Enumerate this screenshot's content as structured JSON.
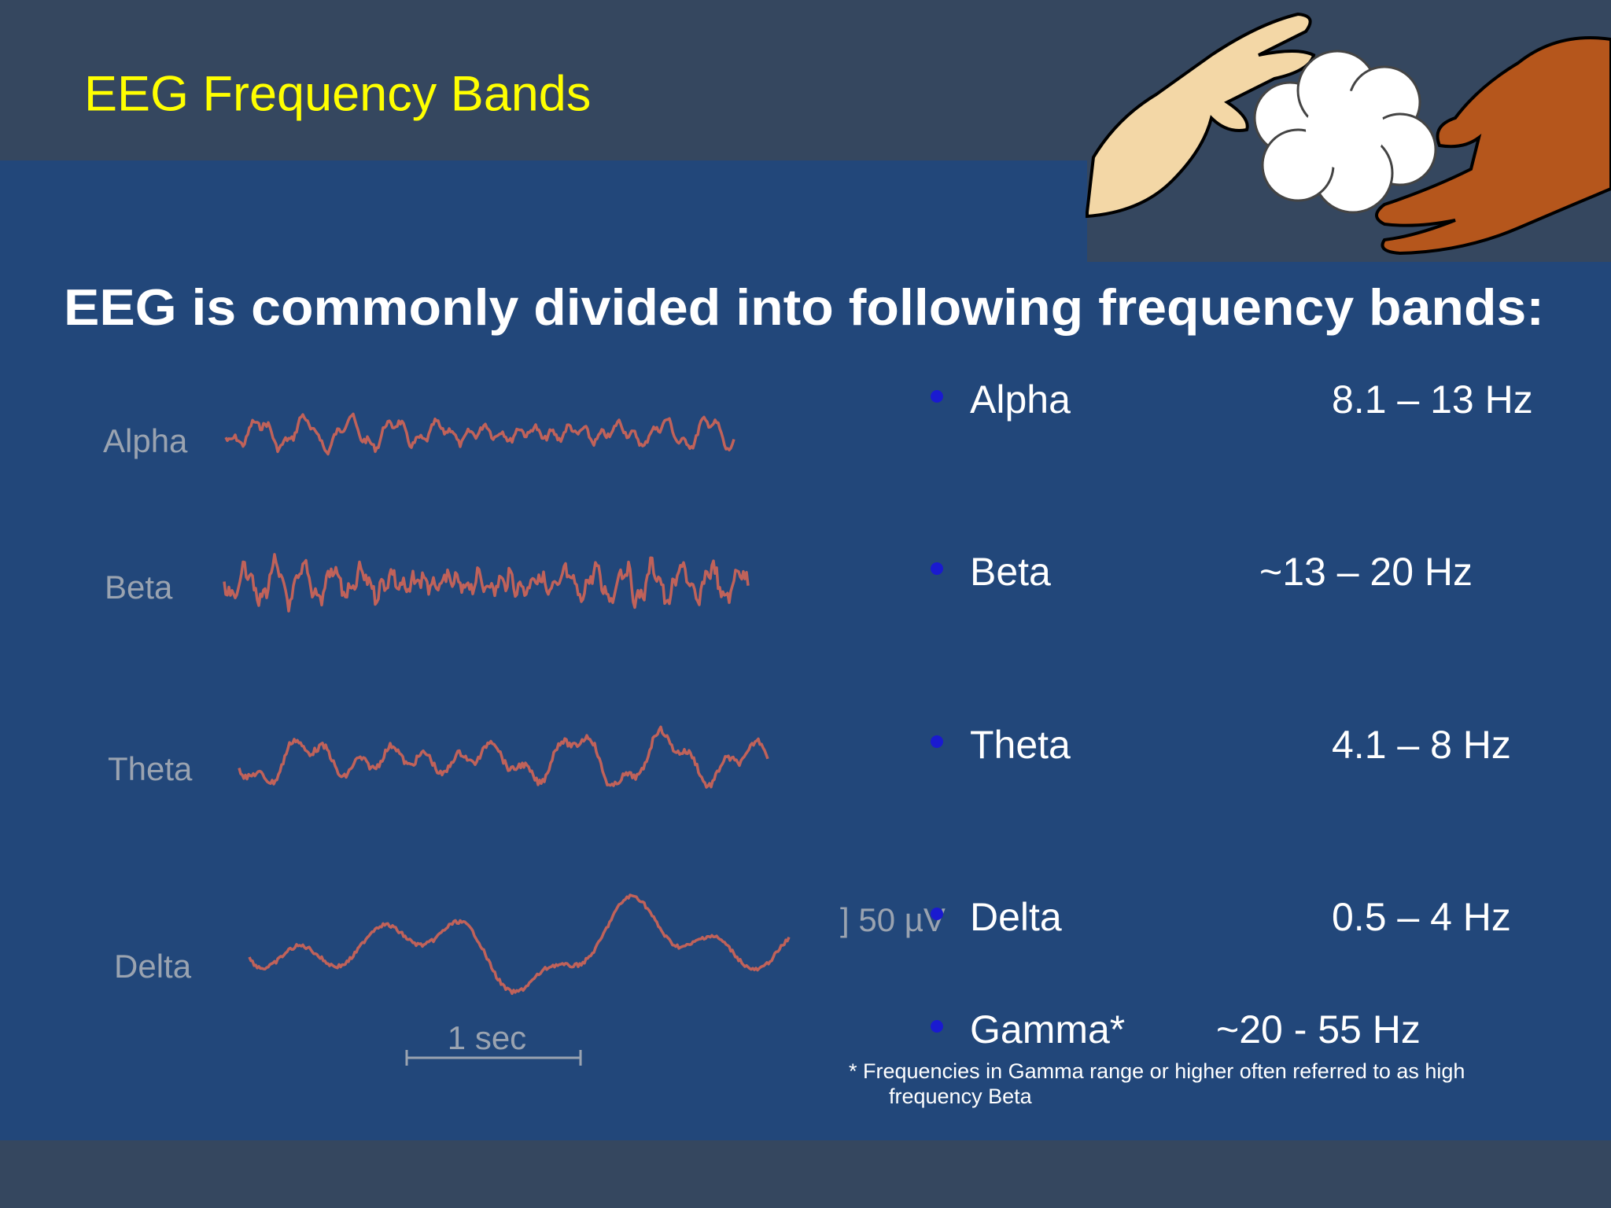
{
  "header": {
    "title": "EEG Frequency Bands"
  },
  "subtitle": "EEG is commonly divided into following frequency bands:",
  "waveforms": [
    {
      "label": "Alpha"
    },
    {
      "label": "Beta"
    },
    {
      "label": "Theta"
    },
    {
      "label": "Delta"
    }
  ],
  "scale": {
    "amplitude": "] 50 µV",
    "time": "1 sec"
  },
  "bands": [
    {
      "name": "Alpha",
      "range": "8.1 – 13 Hz"
    },
    {
      "name": "Beta",
      "range": "~13 – 20 Hz"
    },
    {
      "name": "Theta",
      "range": "4.1 – 8 Hz"
    },
    {
      "name": "Delta",
      "range": "0.5 – 4 Hz"
    },
    {
      "name": "Gamma*",
      "range": "~20 - 55 Hz"
    }
  ],
  "footnote": "* Frequencies in Gamma range or higher often referred to as high frequency Beta"
}
